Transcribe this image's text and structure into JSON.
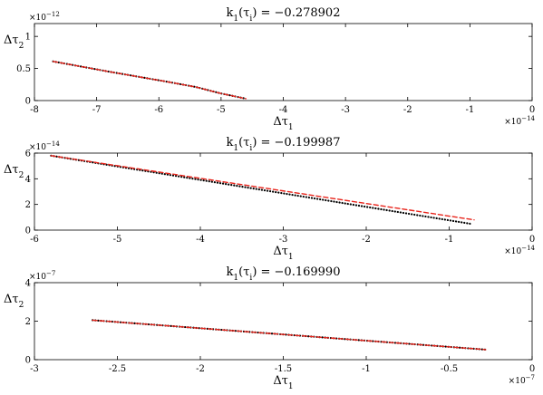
{
  "chart_data": [
    {
      "type": "scatter",
      "title": "k1(τi) = −0.278902",
      "xlabel": "Δτ1",
      "ylabel": "Δτ2",
      "xlim": [
        -8,
        0
      ],
      "ylim": [
        0,
        1.2
      ],
      "xticks": [
        -8,
        -7,
        -6,
        -5,
        -4,
        -3,
        -2,
        -1,
        0
      ],
      "yticks": [
        0,
        0.5,
        1
      ],
      "xtick_labels": [
        "-8",
        "-7",
        "-6",
        "-5",
        "-4",
        "-3",
        "-2",
        "-1",
        "0"
      ],
      "ytick_labels": [
        "0",
        "0.5",
        "1"
      ],
      "x_exponent": "×10−14",
      "y_exponent": "×10−12",
      "grid": false,
      "series": [
        {
          "color": "#000000",
          "style": "dotted",
          "x": [
            -7.7,
            -6.8,
            -5.9,
            -5.4,
            -5.0,
            -4.6
          ],
          "y": [
            0.61,
            0.45,
            0.3,
            0.21,
            0.11,
            0.03
          ]
        },
        {
          "color": "#e8251c",
          "style": "dashed",
          "x": [
            -7.7,
            -6.8,
            -5.9,
            -5.4,
            -5.0,
            -4.6
          ],
          "y": [
            0.61,
            0.45,
            0.3,
            0.21,
            0.11,
            0.03
          ]
        }
      ]
    },
    {
      "type": "scatter",
      "title": "k1(τi) = −0.199987",
      "xlabel": "Δτ1",
      "ylabel": "Δτ2",
      "xlim": [
        -6,
        0
      ],
      "ylim": [
        0,
        6
      ],
      "xticks": [
        -6,
        -5,
        -4,
        -3,
        -2,
        -1,
        0
      ],
      "yticks": [
        0,
        2,
        4,
        6
      ],
      "xtick_labels": [
        "-6",
        "-5",
        "-4",
        "-3",
        "-2",
        "-1",
        "0"
      ],
      "ytick_labels": [
        "0",
        "2",
        "4",
        "6"
      ],
      "x_exponent": "×10−14",
      "y_exponent": "×10−14",
      "grid": false,
      "series": [
        {
          "color": "#000000",
          "style": "dotted",
          "x": [
            -5.8,
            -0.75
          ],
          "y": [
            5.8,
            0.5
          ]
        },
        {
          "color": "#e8251c",
          "style": "dashed",
          "x": [
            -5.8,
            -0.7
          ],
          "y": [
            5.8,
            0.8
          ]
        }
      ]
    },
    {
      "type": "scatter",
      "title": "k1(τi) = −0.169990",
      "xlabel": "Δτ1",
      "ylabel": "Δτ2",
      "xlim": [
        -3,
        0
      ],
      "ylim": [
        0,
        4
      ],
      "xticks": [
        -3,
        -2.5,
        -2,
        -1.5,
        -1,
        -0.5,
        0
      ],
      "yticks": [
        0,
        2,
        4
      ],
      "xtick_labels": [
        "-3",
        "-2.5",
        "-2",
        "-1.5",
        "-1",
        "-0.5",
        "0"
      ],
      "ytick_labels": [
        "0",
        "2",
        "4"
      ],
      "x_exponent": "×10−7",
      "y_exponent": "×10−7",
      "grid": false,
      "series": [
        {
          "color": "#000000",
          "style": "dotted",
          "x": [
            -2.65,
            -0.28
          ],
          "y": [
            2.05,
            0.52
          ]
        },
        {
          "color": "#e8251c",
          "style": "dashed",
          "x": [
            -2.65,
            -0.28
          ],
          "y": [
            2.05,
            0.52
          ]
        }
      ]
    }
  ]
}
